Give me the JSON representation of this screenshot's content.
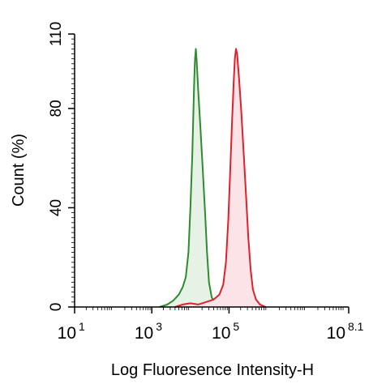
{
  "chart_data": {
    "type": "area",
    "xlabel": "Log Fluoresence Intensity-H",
    "ylabel": "Count  (%)",
    "x_scale": "log10",
    "xlim": [
      1,
      8.1
    ],
    "ylim": [
      0,
      110
    ],
    "x_ticks": [
      {
        "base": "10",
        "exp": "1",
        "value": 1
      },
      {
        "base": "10",
        "exp": "3",
        "value": 3
      },
      {
        "base": "10",
        "exp": "5",
        "value": 5
      },
      {
        "base": "10",
        "exp": "8.1",
        "value": 8.1
      }
    ],
    "y_ticks": [
      {
        "label": "0",
        "value": 0
      },
      {
        "label": "40",
        "value": 40
      },
      {
        "label": "80",
        "value": 80
      },
      {
        "label": "110",
        "value": 110
      }
    ],
    "grid": false,
    "legend": "none",
    "series": [
      {
        "color": "#2e8b2e",
        "fill": "#e6f2e6",
        "points": [
          [
            3.2,
            0
          ],
          [
            3.4,
            1
          ],
          [
            3.55,
            2.5
          ],
          [
            3.7,
            5
          ],
          [
            3.8,
            8
          ],
          [
            3.88,
            12
          ],
          [
            3.95,
            22
          ],
          [
            4.0,
            40
          ],
          [
            4.05,
            62
          ],
          [
            4.08,
            80
          ],
          [
            4.1,
            92
          ],
          [
            4.12,
            100
          ],
          [
            4.14,
            104
          ],
          [
            4.16,
            100
          ],
          [
            4.2,
            88
          ],
          [
            4.26,
            72
          ],
          [
            4.32,
            55
          ],
          [
            4.38,
            38
          ],
          [
            4.43,
            22
          ],
          [
            4.48,
            10
          ],
          [
            4.55,
            4
          ],
          [
            4.65,
            1
          ],
          [
            4.8,
            0
          ]
        ]
      },
      {
        "color": "#e0202a",
        "fill": "#fbe3e8",
        "points": [
          [
            3.6,
            0
          ],
          [
            3.8,
            1
          ],
          [
            4.0,
            1.5
          ],
          [
            4.2,
            1
          ],
          [
            4.4,
            2
          ],
          [
            4.6,
            3
          ],
          [
            4.75,
            5
          ],
          [
            4.85,
            9
          ],
          [
            4.92,
            18
          ],
          [
            4.98,
            35
          ],
          [
            5.03,
            55
          ],
          [
            5.08,
            75
          ],
          [
            5.12,
            90
          ],
          [
            5.15,
            100
          ],
          [
            5.18,
            104
          ],
          [
            5.21,
            102
          ],
          [
            5.26,
            92
          ],
          [
            5.32,
            78
          ],
          [
            5.38,
            62
          ],
          [
            5.44,
            45
          ],
          [
            5.5,
            28
          ],
          [
            5.56,
            15
          ],
          [
            5.62,
            7
          ],
          [
            5.7,
            3
          ],
          [
            5.8,
            1
          ],
          [
            5.95,
            0
          ]
        ]
      }
    ]
  }
}
